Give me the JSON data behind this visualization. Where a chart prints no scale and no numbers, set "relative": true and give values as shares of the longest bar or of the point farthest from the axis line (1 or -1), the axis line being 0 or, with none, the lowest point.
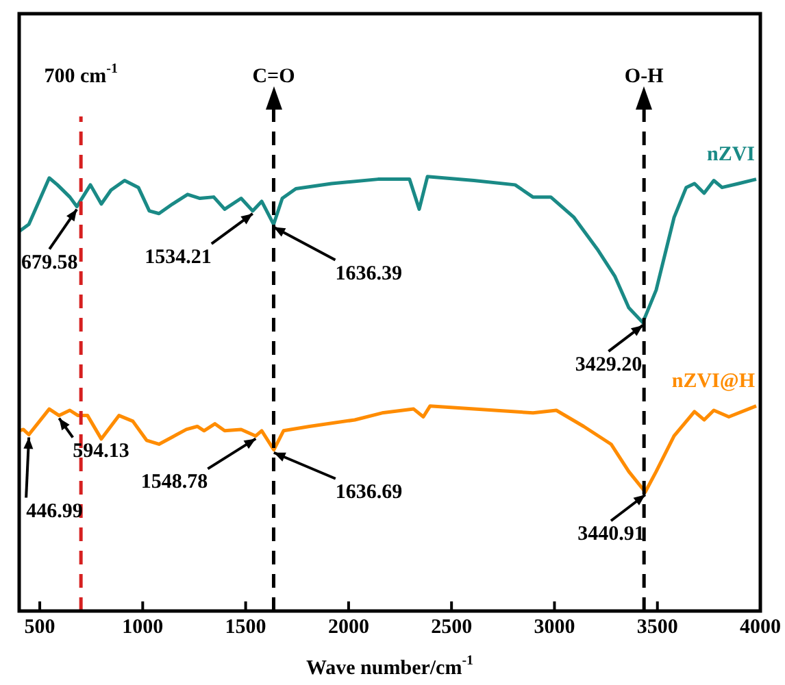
{
  "chart_data": {
    "type": "line",
    "xlabel": "Wave number/cm$^{-1}$",
    "relative": true,
    "legend": false,
    "grid": false,
    "marker": "none",
    "line_style": "solid",
    "xlim": [
      400,
      4000
    ],
    "xticks": [
      500,
      1000,
      1500,
      2000,
      2500,
      3000,
      3500,
      4000
    ],
    "series": [
      {
        "name": "nZVI",
        "color": "#1a8a86",
        "x": [
          400,
          447,
          546,
          586,
          646,
          680,
          746,
          799,
          846,
          912,
          979,
          1032,
          1079,
          1145,
          1218,
          1278,
          1345,
          1398,
          1478,
          1534,
          1578,
          1636,
          1678,
          1744,
          1917,
          2143,
          2296,
          2343,
          2383,
          2609,
          2809,
          2895,
          2982,
          3095,
          3208,
          3294,
          3361,
          3429,
          3494,
          3581,
          3640,
          3680,
          3727,
          3774,
          3814,
          3894,
          3980
        ],
        "values": [
          0.874,
          0.89,
          0.997,
          0.981,
          0.953,
          0.931,
          0.981,
          0.937,
          0.969,
          0.991,
          0.975,
          0.921,
          0.915,
          0.937,
          0.959,
          0.95,
          0.953,
          0.925,
          0.95,
          0.921,
          0.943,
          0.89,
          0.95,
          0.972,
          0.984,
          0.994,
          0.994,
          0.925,
          1.0,
          0.991,
          0.981,
          0.953,
          0.953,
          0.906,
          0.833,
          0.77,
          0.698,
          0.664,
          0.739,
          0.906,
          0.975,
          0.984,
          0.962,
          0.991,
          0.975,
          0.984,
          0.994
        ]
      },
      {
        "name": "nZVI@H",
        "color": "#ff8c00",
        "x": [
          400,
          420,
          447,
          546,
          594,
          646,
          686,
          732,
          799,
          885,
          952,
          1019,
          1079,
          1212,
          1265,
          1298,
          1351,
          1398,
          1478,
          1549,
          1578,
          1637,
          1684,
          1810,
          2030,
          2163,
          2316,
          2363,
          2396,
          2896,
          3009,
          3142,
          3275,
          3361,
          3441,
          3494,
          3581,
          3680,
          3727,
          3774,
          3847,
          3980
        ],
        "values": [
          0.415,
          0.418,
          0.406,
          0.465,
          0.45,
          0.462,
          0.45,
          0.45,
          0.396,
          0.45,
          0.437,
          0.393,
          0.384,
          0.418,
          0.425,
          0.415,
          0.431,
          0.415,
          0.418,
          0.403,
          0.415,
          0.371,
          0.415,
          0.425,
          0.44,
          0.456,
          0.465,
          0.447,
          0.472,
          0.456,
          0.462,
          0.425,
          0.384,
          0.321,
          0.274,
          0.321,
          0.403,
          0.459,
          0.44,
          0.462,
          0.447,
          0.472
        ]
      }
    ],
    "ref_lines": [
      {
        "axis": "x",
        "value": 700,
        "label": "700 cm$^{-1}$",
        "color": "#d62020",
        "line_style": "dashed"
      },
      {
        "axis": "x",
        "value": 1636,
        "label": "C=O",
        "color": "#000000",
        "line_style": "dashed"
      },
      {
        "axis": "x",
        "value": 3435,
        "label": "O-H",
        "color": "#000000",
        "line_style": "dashed"
      }
    ],
    "annotations": [
      {
        "text": "679.58",
        "x": 680,
        "y": 0.931
      },
      {
        "text": "1534.21",
        "x": 1534,
        "y": 0.921
      },
      {
        "text": "1636.39",
        "x": 1636,
        "y": 0.89
      },
      {
        "text": "3429.20",
        "x": 3429,
        "y": 0.664
      },
      {
        "text": "446.99",
        "x": 447,
        "y": 0.406
      },
      {
        "text": "594.13",
        "x": 594,
        "y": 0.45
      },
      {
        "text": "1548.78",
        "x": 1549,
        "y": 0.403
      },
      {
        "text": "1636.69",
        "x": 1637,
        "y": 0.371
      },
      {
        "text": "3440.91",
        "x": 3441,
        "y": 0.274
      }
    ]
  }
}
